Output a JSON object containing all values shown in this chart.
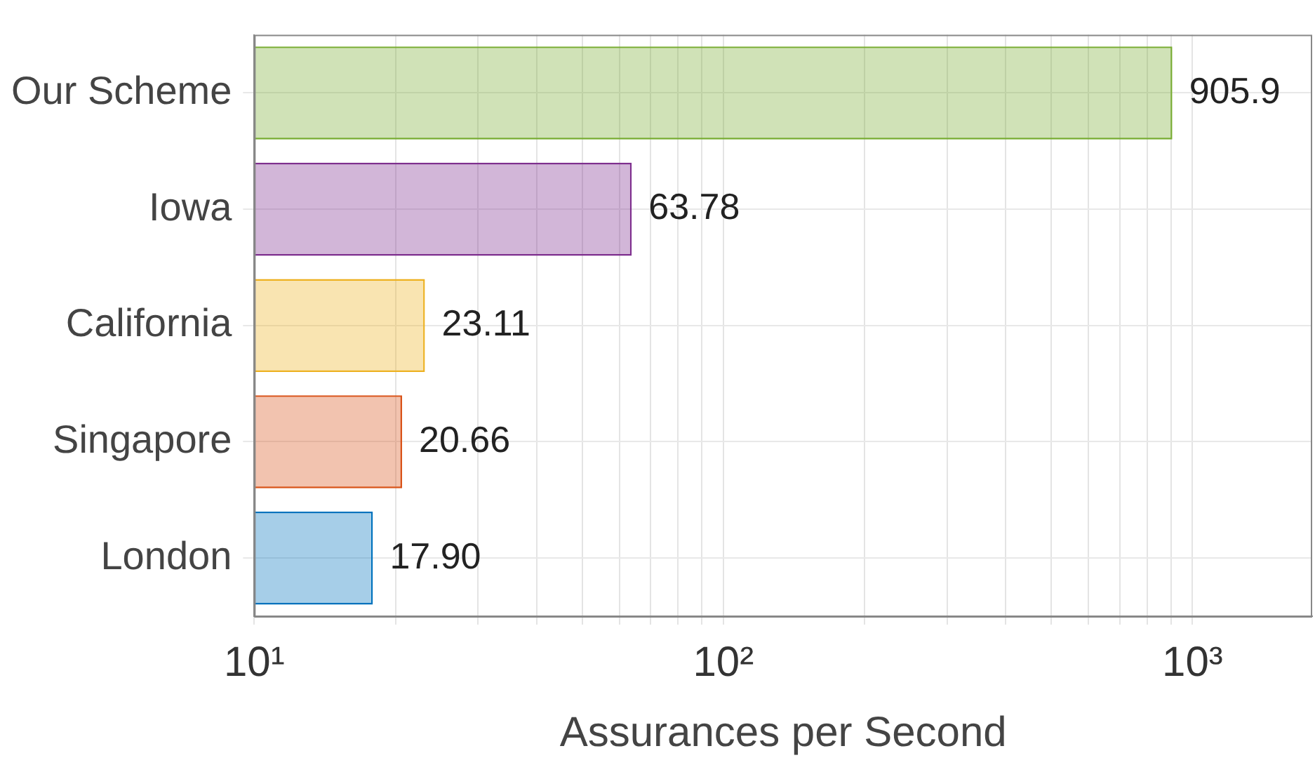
{
  "chart_data": {
    "type": "bar",
    "orientation": "horizontal",
    "xlabel": "Assurances per Second",
    "categories": [
      "Our Scheme",
      "Iowa",
      "California",
      "Singapore",
      "London"
    ],
    "values": [
      905.9,
      63.78,
      23.11,
      20.66,
      17.9
    ],
    "value_labels": [
      "905.9",
      "63.78",
      "23.11",
      "20.66",
      "17.90"
    ],
    "colors": [
      "#77ac30",
      "#7e2f8e",
      "#edb120",
      "#d95319",
      "#0072bd"
    ],
    "log": "x",
    "xlim": [
      10,
      1800
    ],
    "xticks": [
      {
        "value": 10,
        "label": "10¹"
      },
      {
        "value": 20,
        "label": null
      },
      {
        "value": 30,
        "label": null
      },
      {
        "value": 40,
        "label": null
      },
      {
        "value": 50,
        "label": null
      },
      {
        "value": 60,
        "label": null
      },
      {
        "value": 70,
        "label": null
      },
      {
        "value": 80,
        "label": null
      },
      {
        "value": 90,
        "label": null
      },
      {
        "value": 100,
        "label": "10²"
      },
      {
        "value": 200,
        "label": null
      },
      {
        "value": 300,
        "label": null
      },
      {
        "value": 400,
        "label": null
      },
      {
        "value": 500,
        "label": null
      },
      {
        "value": 600,
        "label": null
      },
      {
        "value": 700,
        "label": null
      },
      {
        "value": 800,
        "label": null
      },
      {
        "value": 900,
        "label": null
      },
      {
        "value": 1000,
        "label": "10³"
      }
    ],
    "grid": true
  }
}
